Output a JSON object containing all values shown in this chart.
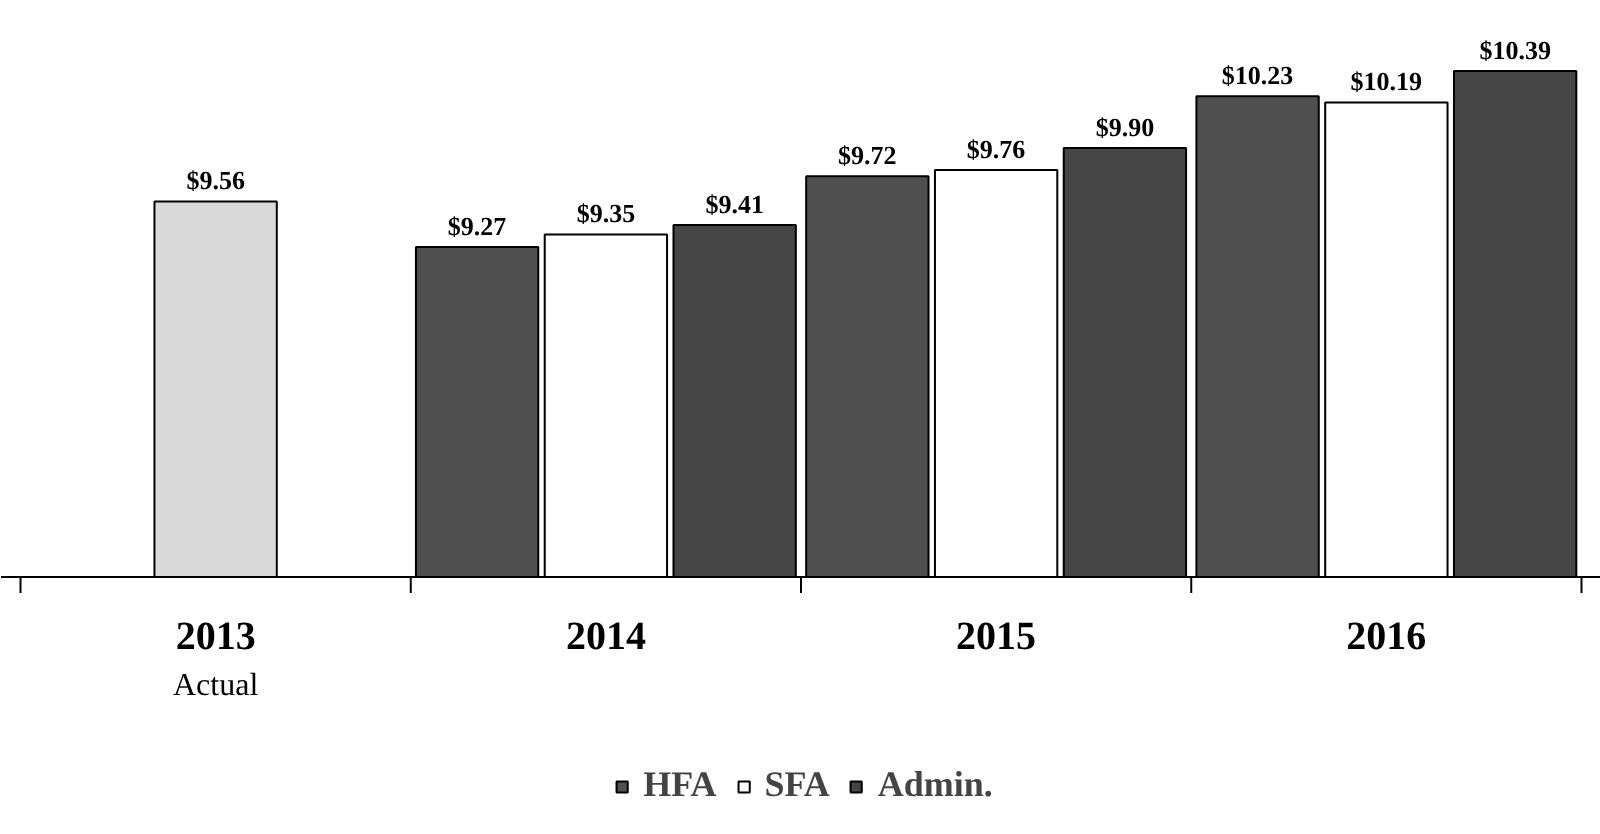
{
  "chart_data": {
    "type": "bar",
    "categories": [
      "2013",
      "2014",
      "2015",
      "2016"
    ],
    "ylim": [
      7.17,
      10.39
    ],
    "legend": "bottom",
    "grid": false,
    "annotations": [
      "Actual"
    ],
    "series": [
      {
        "name": "HFA",
        "color": "#505050",
        "values": [
          null,
          9.27,
          9.72,
          10.23
        ],
        "value_labels": [
          null,
          "$9.27",
          "$9.72",
          "$10.23"
        ]
      },
      {
        "name": "SFA",
        "color": "#ffffff",
        "colors": [
          "#d9d9d9",
          "#ffffff",
          "#ffffff",
          "#ffffff"
        ],
        "values": [
          9.56,
          9.35,
          9.76,
          10.19
        ],
        "value_labels": [
          "$9.56",
          "$9.35",
          "$9.76",
          "$10.19"
        ]
      },
      {
        "name": "Admin.",
        "color": "#454545",
        "values": [
          null,
          9.41,
          9.9,
          10.39
        ],
        "value_labels": [
          null,
          "$9.41",
          "$9.90",
          "$10.39"
        ]
      }
    ]
  }
}
